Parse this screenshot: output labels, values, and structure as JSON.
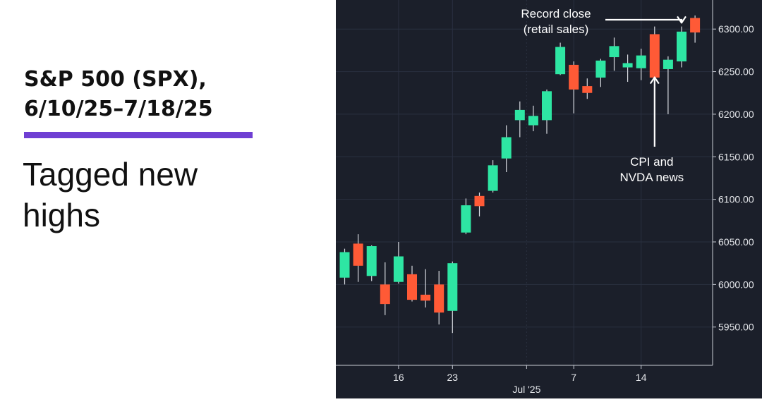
{
  "header": {
    "title_lines": [
      "S&P 500 (SPX),",
      "6/10/25–7/18/25"
    ],
    "subtitle_lines": [
      "Tagged new",
      "highs"
    ],
    "accent_color": "#6f3fd3"
  },
  "chart_data": {
    "type": "candlestick",
    "title": "S&P 500 (SPX), 6/10/25–7/18/25",
    "subtitle": "Tagged new highs",
    "ylim": [
      5910,
      6330
    ],
    "y_ticks": [
      "5950.00",
      "6000.00",
      "6050.00",
      "6100.00",
      "6150.00",
      "6200.00",
      "6250.00",
      "6300.00"
    ],
    "x_ticks": [
      {
        "label": "16",
        "index": 4
      },
      {
        "label": "23",
        "index": 8
      },
      {
        "label": "Jul '25",
        "index": 13.5
      },
      {
        "label": "7",
        "index": 17
      },
      {
        "label": "14",
        "index": 22
      }
    ],
    "up_color": "#2ee6a3",
    "down_color": "#ff5a36",
    "background_color": "#1b1f2a",
    "candles": [
      {
        "date": "6/10/25",
        "open": 6008,
        "high": 6042,
        "low": 6000,
        "close": 6038
      },
      {
        "date": "6/11/25",
        "open": 6048,
        "high": 6059,
        "low": 6003,
        "close": 6022
      },
      {
        "date": "6/12/25",
        "open": 6010,
        "high": 6046,
        "low": 6004,
        "close": 6045
      },
      {
        "date": "6/13/25",
        "open": 6000,
        "high": 6026,
        "low": 5964,
        "close": 5977
      },
      {
        "date": "6/16/25",
        "open": 6003,
        "high": 6050,
        "low": 6001,
        "close": 6033
      },
      {
        "date": "6/17/25",
        "open": 6012,
        "high": 6022,
        "low": 5980,
        "close": 5982
      },
      {
        "date": "6/18/25",
        "open": 5988,
        "high": 6018,
        "low": 5973,
        "close": 5981
      },
      {
        "date": "6/19/25",
        "open": 6000,
        "high": 6016,
        "low": 5953,
        "close": 5967
      },
      {
        "date": "6/20/25",
        "open": 5969,
        "high": 6027,
        "low": 5943,
        "close": 6025
      },
      {
        "date": "6/23/25",
        "open": 6061,
        "high": 6101,
        "low": 6059,
        "close": 6093
      },
      {
        "date": "6/24/25",
        "open": 6104,
        "high": 6108,
        "low": 6080,
        "close": 6092
      },
      {
        "date": "6/25/25",
        "open": 6110,
        "high": 6146,
        "low": 6108,
        "close": 6140
      },
      {
        "date": "6/26/25",
        "open": 6148,
        "high": 6187,
        "low": 6132,
        "close": 6173
      },
      {
        "date": "6/27/25",
        "open": 6193,
        "high": 6215,
        "low": 6173,
        "close": 6205
      },
      {
        "date": "6/30/25",
        "open": 6187,
        "high": 6210,
        "low": 6180,
        "close": 6198
      },
      {
        "date": "7/1/25",
        "open": 6193,
        "high": 6229,
        "low": 6177,
        "close": 6227
      },
      {
        "date": "7/2/25",
        "open": 6247,
        "high": 6284,
        "low": 6246,
        "close": 6279
      },
      {
        "date": "7/3/25",
        "open": 6258,
        "high": 6262,
        "low": 6201,
        "close": 6229
      },
      {
        "date": "7/7/25",
        "open": 6233,
        "high": 6242,
        "low": 6218,
        "close": 6225
      },
      {
        "date": "7/8/25",
        "open": 6243,
        "high": 6265,
        "low": 6232,
        "close": 6263
      },
      {
        "date": "7/9/25",
        "open": 6267,
        "high": 6290,
        "low": 6251,
        "close": 6280
      },
      {
        "date": "7/10/25",
        "open": 6255,
        "high": 6270,
        "low": 6238,
        "close": 6260
      },
      {
        "date": "7/11/25",
        "open": 6254,
        "high": 6277,
        "low": 6240,
        "close": 6269
      },
      {
        "date": "7/14/25",
        "open": 6294,
        "high": 6303,
        "low": 6238,
        "close": 6243
      },
      {
        "date": "7/15/25",
        "open": 6253,
        "high": 6268,
        "low": 6200,
        "close": 6264
      },
      {
        "date": "7/16/25",
        "open": 6262,
        "high": 6303,
        "low": 6255,
        "close": 6297
      },
      {
        "date": "7/17/25",
        "open": 6313,
        "high": 6316,
        "low": 6284,
        "close": 6296
      }
    ],
    "annotations": [
      {
        "text_lines": [
          "Record close",
          "(retail sales)"
        ],
        "target_index": 25,
        "target_value": 6304
      },
      {
        "text_lines": [
          "CPI and",
          "NVDA news"
        ],
        "target_index": 23,
        "target_value": 6250
      }
    ]
  }
}
